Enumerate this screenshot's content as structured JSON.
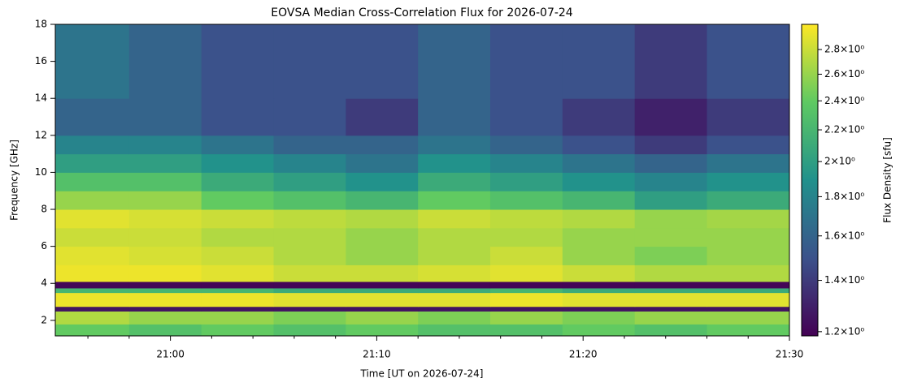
{
  "chart_data": {
    "type": "heatmap",
    "title": "EOVSA Median Cross-Correlation Flux for 2026-07-24",
    "x_label": "Time [UT on 2026-07-24]",
    "y_label": "Frequency [GHz]",
    "colorbar_label": "Flux Density [sfu]",
    "colormap": "viridis",
    "zscale": "log",
    "xlim": [
      1254.42,
      1290
    ],
    "xticks": [
      {
        "value": 1260,
        "label": "21:00"
      },
      {
        "value": 1270,
        "label": "21:10"
      },
      {
        "value": 1280,
        "label": "21:20"
      },
      {
        "value": 1290,
        "label": "21:30"
      }
    ],
    "xminorticks": [
      1256,
      1258,
      1262,
      1264,
      1266,
      1268,
      1272,
      1274,
      1276,
      1278,
      1282,
      1284,
      1286,
      1288
    ],
    "ylim": [
      1.16,
      18
    ],
    "yticks": [
      2,
      4,
      6,
      8,
      10,
      12,
      14,
      16,
      18
    ],
    "zlim": [
      1.185,
      3.02
    ],
    "zticks": [
      {
        "value": 1.2,
        "label": "1.2×10⁰"
      },
      {
        "value": 1.4,
        "label": "1.4×10⁰"
      },
      {
        "value": 1.6,
        "label": "1.6×10⁰"
      },
      {
        "value": 1.8,
        "label": "1.8×10⁰"
      },
      {
        "value": 2,
        "label": "2×10⁰"
      },
      {
        "value": 2.2,
        "label": "2.2×10⁰"
      },
      {
        "value": 2.4,
        "label": "2.4×10⁰"
      },
      {
        "value": 2.6,
        "label": "2.6×10⁰"
      },
      {
        "value": 2.8,
        "label": "2.8×10⁰"
      }
    ],
    "x_bins": [
      1254.42,
      1258,
      1261.5,
      1265,
      1268.5,
      1272,
      1275.5,
      1279,
      1282.5,
      1286,
      1290
    ],
    "y_bins": [
      1.16,
      1.8,
      2.5,
      2.75,
      3.5,
      3.75,
      4.1,
      5,
      6,
      7,
      8,
      9,
      10,
      11,
      12,
      14,
      18
    ],
    "z": [
      [
        2.4,
        2.3,
        2.4,
        2.3,
        2.4,
        2.3,
        2.3,
        2.4,
        2.3,
        2.4
      ],
      [
        2.7,
        2.6,
        2.6,
        2.5,
        2.6,
        2.5,
        2.6,
        2.5,
        2.6,
        2.6
      ],
      [
        1.25,
        1.25,
        1.25,
        1.25,
        1.25,
        1.25,
        1.25,
        1.25,
        1.25,
        1.25
      ],
      [
        2.95,
        2.95,
        2.95,
        2.9,
        2.9,
        2.9,
        2.95,
        2.9,
        2.9,
        2.9
      ],
      [
        2.2,
        2.2,
        2.2,
        2.1,
        2.1,
        2.1,
        2.2,
        2.1,
        2.1,
        2.1
      ],
      [
        1.2,
        1.2,
        1.2,
        1.2,
        1.2,
        1.2,
        1.2,
        1.2,
        1.2,
        1.2
      ],
      [
        2.95,
        2.95,
        2.9,
        2.8,
        2.8,
        2.85,
        2.9,
        2.8,
        2.7,
        2.7
      ],
      [
        2.9,
        2.85,
        2.8,
        2.7,
        2.6,
        2.7,
        2.8,
        2.6,
        2.5,
        2.6
      ],
      [
        2.8,
        2.8,
        2.7,
        2.7,
        2.6,
        2.7,
        2.7,
        2.6,
        2.6,
        2.6
      ],
      [
        2.9,
        2.85,
        2.8,
        2.75,
        2.7,
        2.8,
        2.75,
        2.7,
        2.6,
        2.65
      ],
      [
        2.6,
        2.6,
        2.4,
        2.3,
        2.2,
        2.4,
        2.3,
        2.2,
        2.0,
        2.1
      ],
      [
        2.3,
        2.3,
        2.1,
        2.0,
        1.9,
        2.1,
        2.0,
        1.9,
        1.8,
        1.9
      ],
      [
        2.0,
        2.0,
        1.9,
        1.8,
        1.7,
        1.9,
        1.8,
        1.7,
        1.6,
        1.7
      ],
      [
        1.8,
        1.8,
        1.7,
        1.6,
        1.6,
        1.7,
        1.6,
        1.5,
        1.4,
        1.5
      ],
      [
        1.6,
        1.6,
        1.5,
        1.5,
        1.4,
        1.6,
        1.5,
        1.4,
        1.3,
        1.4
      ],
      [
        1.7,
        1.6,
        1.5,
        1.5,
        1.5,
        1.6,
        1.5,
        1.5,
        1.4,
        1.5
      ]
    ]
  }
}
